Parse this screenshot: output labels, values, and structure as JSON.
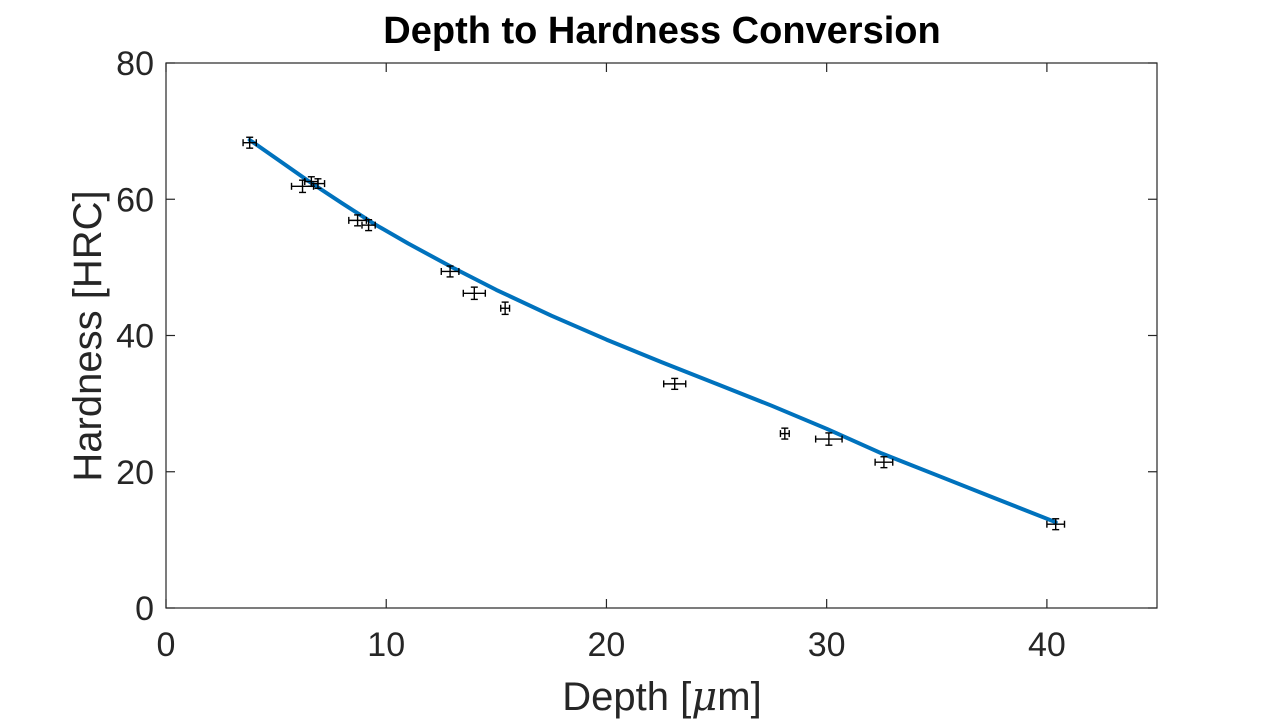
{
  "chart_data": {
    "type": "scatter",
    "title": "Depth to Hardness Conversion",
    "xlabel_prefix": "Depth [",
    "xlabel_greek": "μ",
    "xlabel_suffix": "m]",
    "ylabel": "Hardness [HRC]",
    "xlim": [
      0,
      45
    ],
    "ylim": [
      0,
      80
    ],
    "xticks": [
      0,
      10,
      20,
      30,
      40
    ],
    "yticks": [
      0,
      20,
      40,
      60,
      80
    ],
    "grid": false,
    "colors": {
      "fit": "#0072BD",
      "points": "#000000",
      "axes": "#262626"
    },
    "series": [
      {
        "kind": "errorbar",
        "points": [
          {
            "x": 3.8,
            "y": 68.3,
            "xerr": 0.3,
            "yerr": 0.8
          },
          {
            "x": 6.2,
            "y": 61.9,
            "xerr": 0.5,
            "yerr": 0.9
          },
          {
            "x": 6.6,
            "y": 62.6,
            "xerr": 0.3,
            "yerr": 0.7
          },
          {
            "x": 6.9,
            "y": 62.3,
            "xerr": 0.3,
            "yerr": 0.7
          },
          {
            "x": 8.7,
            "y": 56.9,
            "xerr": 0.4,
            "yerr": 0.8
          },
          {
            "x": 9.2,
            "y": 56.2,
            "xerr": 0.3,
            "yerr": 0.8
          },
          {
            "x": 12.9,
            "y": 49.4,
            "xerr": 0.4,
            "yerr": 0.8
          },
          {
            "x": 14.0,
            "y": 46.2,
            "xerr": 0.5,
            "yerr": 0.9
          },
          {
            "x": 15.4,
            "y": 44.0,
            "xerr": 0.2,
            "yerr": 0.9
          },
          {
            "x": 23.1,
            "y": 32.9,
            "xerr": 0.5,
            "yerr": 0.8
          },
          {
            "x": 28.1,
            "y": 25.6,
            "xerr": 0.2,
            "yerr": 0.8
          },
          {
            "x": 30.1,
            "y": 24.8,
            "xerr": 0.6,
            "yerr": 0.9
          },
          {
            "x": 32.6,
            "y": 21.4,
            "xerr": 0.4,
            "yerr": 0.8
          },
          {
            "x": 40.4,
            "y": 12.3,
            "xerr": 0.4,
            "yerr": 0.8
          }
        ]
      },
      {
        "kind": "line",
        "x": [
          3.8,
          5,
          6.5,
          8,
          9.5,
          11,
          13,
          15,
          17.5,
          20,
          22.5,
          25,
          27.5,
          30,
          32.5,
          35,
          37.5,
          40.4
        ],
        "y": [
          68.7,
          66.0,
          62.6,
          59.4,
          56.3,
          53.5,
          50.0,
          46.7,
          42.9,
          39.4,
          36.1,
          32.9,
          29.7,
          26.3,
          22.7,
          19.5,
          16.3,
          12.6
        ]
      }
    ]
  }
}
